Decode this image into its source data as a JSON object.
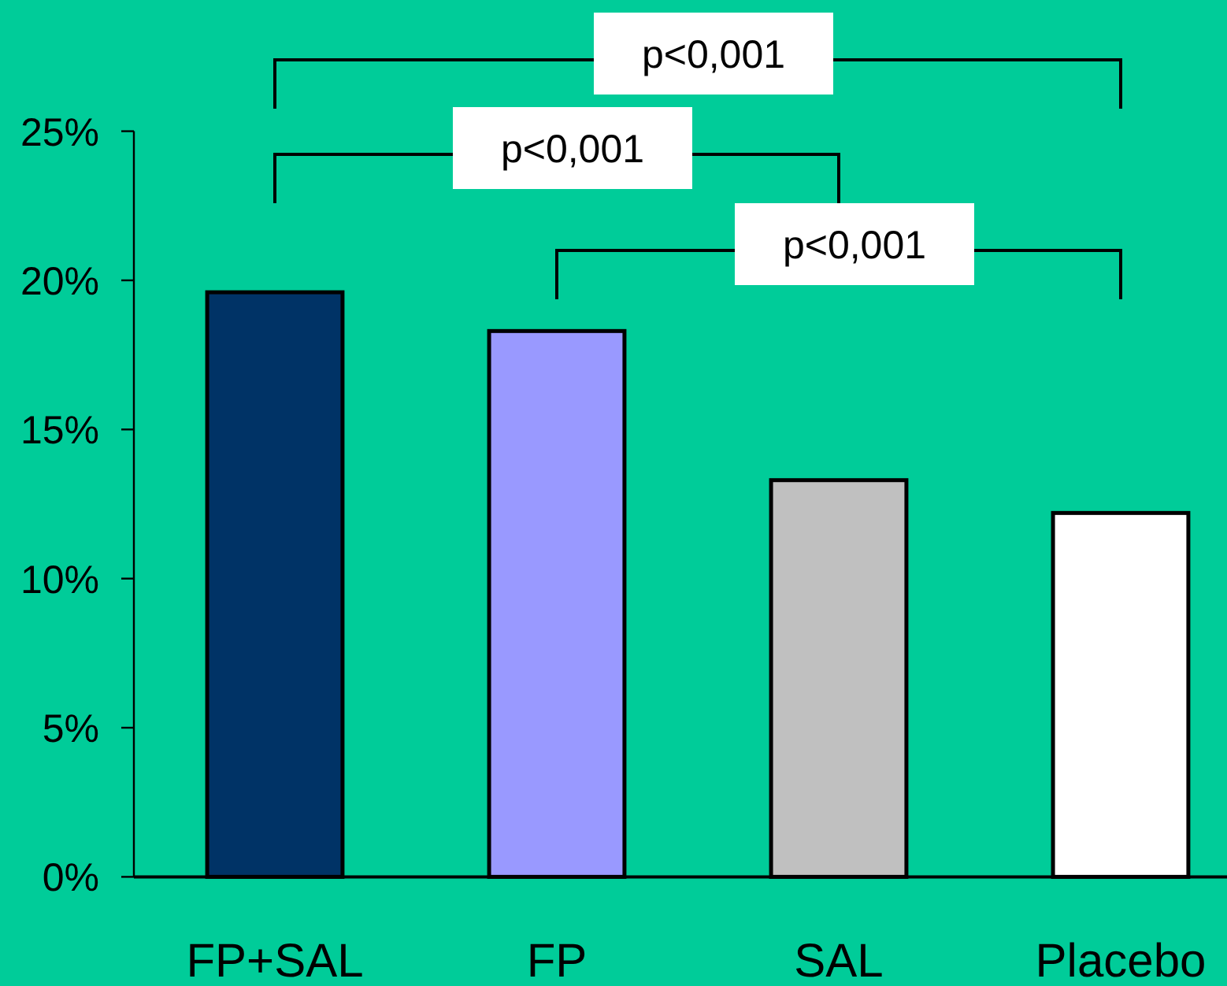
{
  "chart_data": {
    "type": "bar",
    "categories": [
      "FP+SAL",
      "FP",
      "SAL",
      "Placebo"
    ],
    "values": [
      19.6,
      18.3,
      13.3,
      12.2
    ],
    "colors": [
      "#003366",
      "#9999ff",
      "#c0c0c0",
      "#ffffff"
    ],
    "ylim": [
      0,
      25
    ],
    "yticks": [
      {
        "value": 0,
        "label": "0%"
      },
      {
        "value": 5,
        "label": "5%"
      },
      {
        "value": 10,
        "label": "10%"
      },
      {
        "value": 15,
        "label": "15%"
      },
      {
        "value": 20,
        "label": "20%"
      },
      {
        "value": 25,
        "label": "25%"
      }
    ],
    "annotations": [
      "p<0,001",
      "p<0,001",
      "p<0,001"
    ]
  }
}
